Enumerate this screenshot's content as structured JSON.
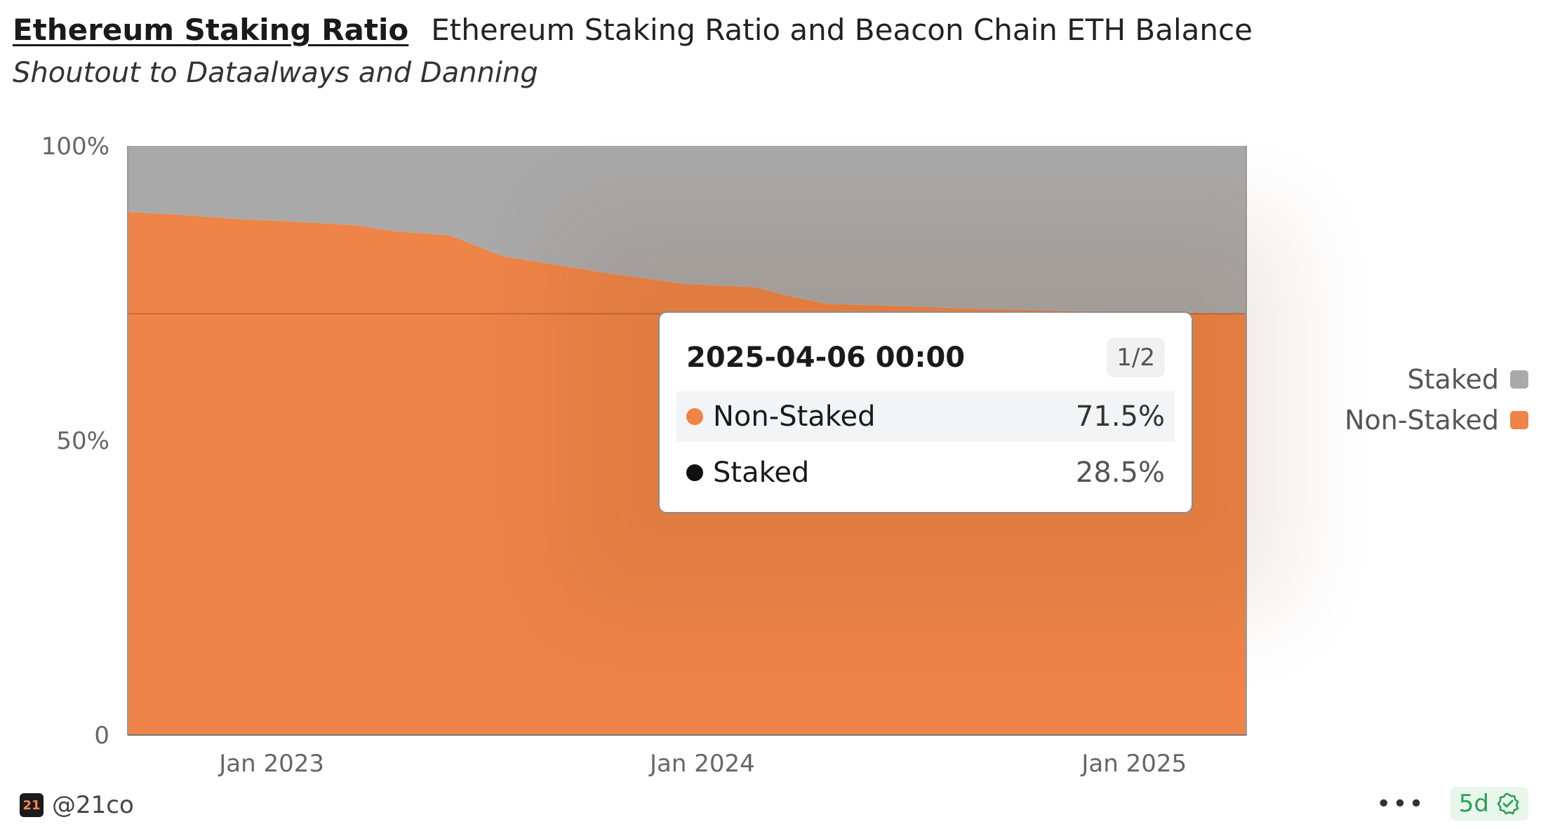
{
  "header": {
    "dashboard_link": "Ethereum Staking Ratio",
    "title": "Ethereum Staking Ratio and Beacon Chain ETH Balance",
    "subtitle": "Shoutout to Dataalways and Danning"
  },
  "chart_data": {
    "type": "area",
    "stacked": true,
    "normalized": true,
    "x_start": "2022-09-01",
    "x_end": "2025-04-06",
    "x_ticks": [
      "2023-01-01",
      "2024-01-01",
      "2025-01-01"
    ],
    "x_tick_labels": [
      "Jan 2023",
      "Jan 2024",
      "Jan 2025"
    ],
    "y_ticks": [
      0,
      50,
      100
    ],
    "y_tick_labels": [
      "0",
      "50%",
      "100%"
    ],
    "ylim": [
      0,
      100
    ],
    "series": [
      {
        "name": "Non-Staked",
        "color": "#ee8448",
        "points": [
          [
            "2022-09-01",
            88.8
          ],
          [
            "2022-10-15",
            88.3
          ],
          [
            "2022-12-01",
            87.6
          ],
          [
            "2023-01-15",
            87.2
          ],
          [
            "2023-03-15",
            86.5
          ],
          [
            "2023-04-15",
            85.5
          ],
          [
            "2023-06-01",
            84.8
          ],
          [
            "2023-06-20",
            83.3
          ],
          [
            "2023-07-15",
            81.3
          ],
          [
            "2023-08-15",
            80.3
          ],
          [
            "2023-09-15",
            79.3
          ],
          [
            "2023-10-15",
            78.3
          ],
          [
            "2023-11-15",
            77.5
          ],
          [
            "2023-12-15",
            76.6
          ],
          [
            "2024-01-15",
            76.3
          ],
          [
            "2024-02-15",
            76.0
          ],
          [
            "2024-03-15",
            74.5
          ],
          [
            "2024-04-15",
            73.2
          ],
          [
            "2024-06-15",
            72.8
          ],
          [
            "2024-09-01",
            72.3
          ],
          [
            "2024-12-01",
            71.9
          ],
          [
            "2025-02-15",
            71.7
          ],
          [
            "2025-04-06",
            71.5
          ]
        ]
      },
      {
        "name": "Staked",
        "color": "#a9a9a9",
        "points": [
          [
            "2022-09-01",
            11.2
          ],
          [
            "2022-10-15",
            11.7
          ],
          [
            "2022-12-01",
            12.4
          ],
          [
            "2023-01-15",
            12.8
          ],
          [
            "2023-03-15",
            13.5
          ],
          [
            "2023-04-15",
            14.5
          ],
          [
            "2023-06-01",
            15.2
          ],
          [
            "2023-06-20",
            16.7
          ],
          [
            "2023-07-15",
            18.7
          ],
          [
            "2023-08-15",
            19.7
          ],
          [
            "2023-09-15",
            20.7
          ],
          [
            "2023-10-15",
            21.7
          ],
          [
            "2023-11-15",
            22.5
          ],
          [
            "2023-12-15",
            23.4
          ],
          [
            "2024-01-15",
            23.7
          ],
          [
            "2024-02-15",
            24.0
          ],
          [
            "2024-03-15",
            25.5
          ],
          [
            "2024-04-15",
            26.8
          ],
          [
            "2024-06-15",
            27.2
          ],
          [
            "2024-09-01",
            27.7
          ],
          [
            "2024-12-01",
            28.1
          ],
          [
            "2025-02-15",
            28.3
          ],
          [
            "2025-04-06",
            28.5
          ]
        ]
      }
    ],
    "legend": [
      "Staked",
      "Non-Staked"
    ],
    "legend_position": "right",
    "hover_value": 71.5
  },
  "tooltip": {
    "date": "2025-04-06 00:00",
    "pager": "1/2",
    "rows": [
      {
        "name": "Non-Staked",
        "value": "71.5%",
        "color": "#ee8448"
      },
      {
        "name": "Staked",
        "value": "28.5%",
        "color": "#111111"
      }
    ]
  },
  "legend": {
    "items": [
      {
        "label": "Staked",
        "color": "#a9a9a9"
      },
      {
        "label": "Non-Staked",
        "color": "#ee8448"
      }
    ]
  },
  "footer": {
    "brand_icon_text": "21",
    "handle": "@21co",
    "more_icon": "more-icon",
    "age": "5d"
  }
}
